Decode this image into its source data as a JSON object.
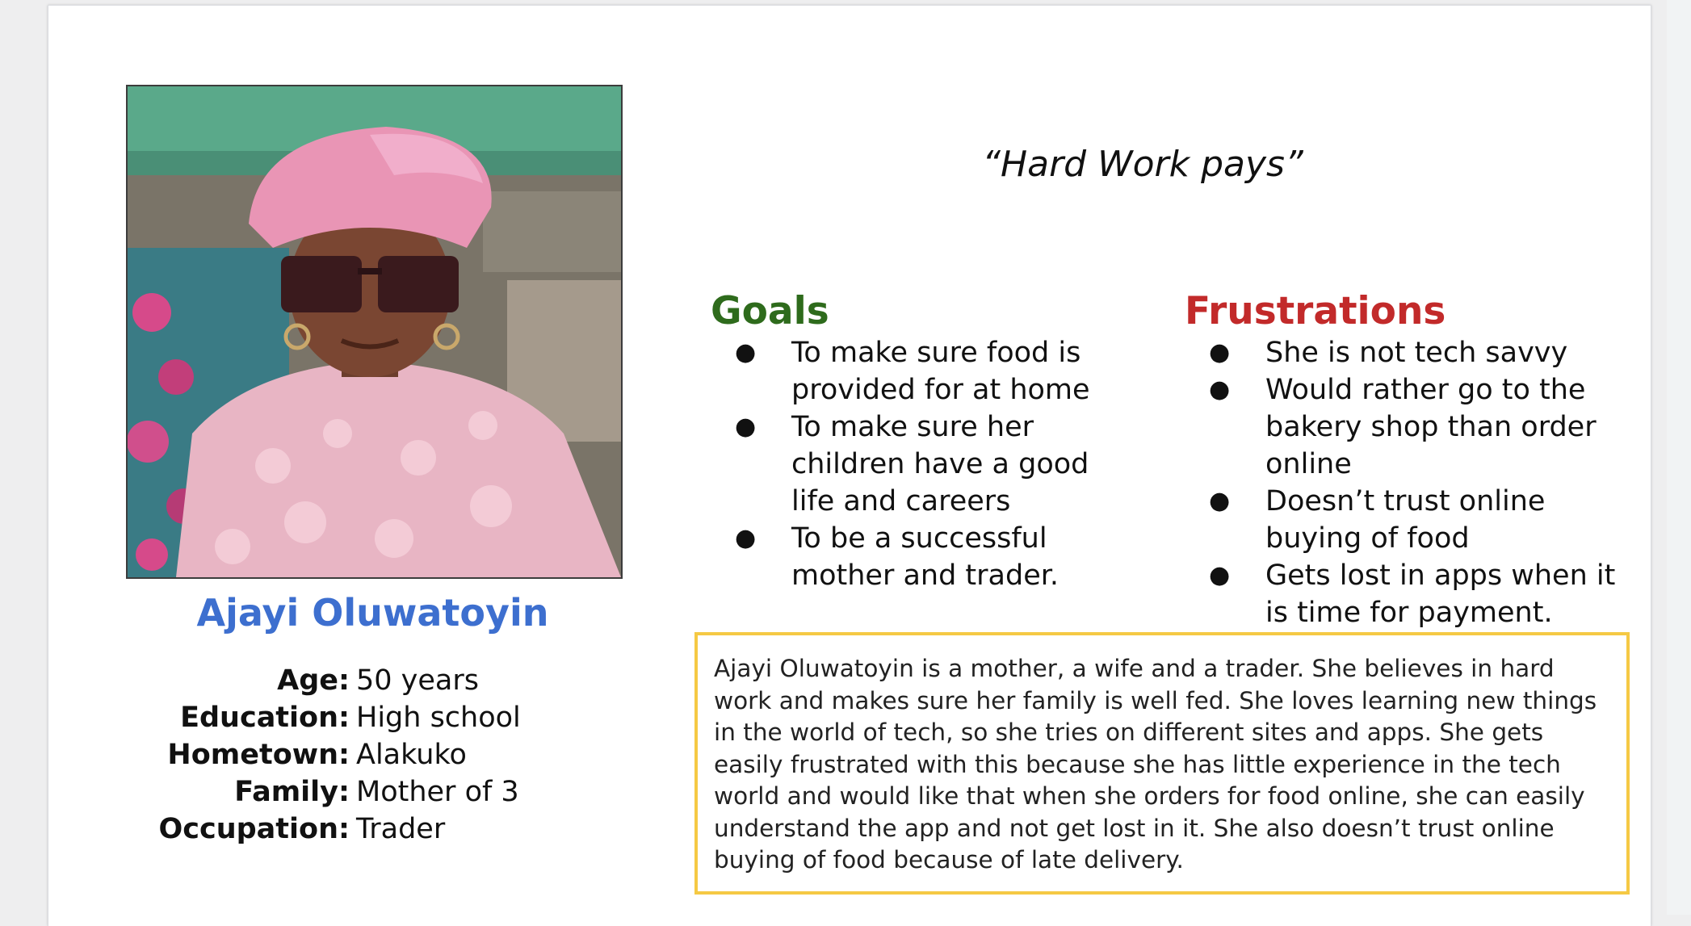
{
  "quote": "“Hard Work pays”",
  "persona": {
    "name": "Ajayi Oluwatoyin",
    "photo_alt": "photo",
    "details": [
      {
        "label": "Age:",
        "value": "50 years"
      },
      {
        "label": "Education:",
        "value": "High school"
      },
      {
        "label": "Hometown:",
        "value": "Alakuko"
      },
      {
        "label": "Family:",
        "value": "Mother of 3"
      },
      {
        "label": "Occupation:",
        "value": "Trader"
      }
    ]
  },
  "goals": {
    "heading": "Goals",
    "items": [
      "To make sure food is provided for at home",
      "To make sure her children have a good life and careers",
      "To be a successful mother and trader."
    ]
  },
  "frustrations": {
    "heading": "Frustrations",
    "items": [
      "She is not tech savvy",
      "Would rather go to the bakery shop than order online",
      "Doesn’t trust online buying of food",
      "Gets lost in apps when it is time for payment."
    ]
  },
  "bio": "Ajayi Oluwatoyin is a mother, a wife and a trader. She believes in hard work and makes sure her family is well fed. She loves learning new things in the world of tech, so she tries on different sites and apps. She gets easily frustrated with this because she has little experience in the tech world and would like that when she orders for food online, she can easily understand the app and not get lost in it. She also doesn’t trust online buying of food because of late delivery.",
  "colors": {
    "name": "#3d6fcf",
    "goals_heading": "#2e6b1c",
    "frustrations_heading": "#c22a2a",
    "bio_border": "#f5c944"
  }
}
